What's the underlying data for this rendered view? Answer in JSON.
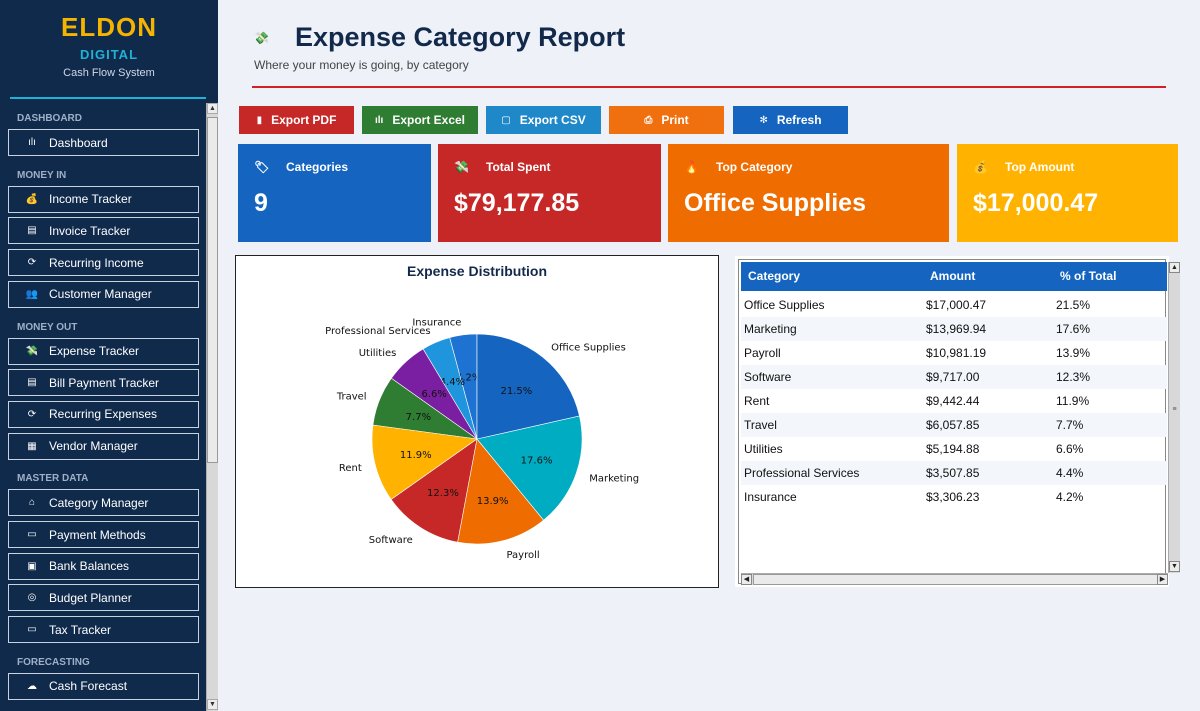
{
  "brand": {
    "name": "ELDON",
    "sub": "DIGITAL",
    "tagline": "Cash Flow System"
  },
  "sidebar": {
    "sections": [
      {
        "label": "DASHBOARD",
        "items": [
          {
            "icon": "bar-chart-icon",
            "glyph": "ılı",
            "label": "Dashboard"
          }
        ]
      },
      {
        "label": "MONEY IN",
        "items": [
          {
            "icon": "money-bag-icon",
            "glyph": "💰",
            "label": "Income Tracker"
          },
          {
            "icon": "invoice-icon",
            "glyph": "▤",
            "label": "Invoice Tracker"
          },
          {
            "icon": "recurring-icon",
            "glyph": "⟳",
            "label": "Recurring Income"
          },
          {
            "icon": "customers-icon",
            "glyph": "👥",
            "label": "Customer Manager"
          }
        ]
      },
      {
        "label": "MONEY OUT",
        "items": [
          {
            "icon": "money-wings-icon",
            "glyph": "💸",
            "label": "Expense Tracker"
          },
          {
            "icon": "bill-icon",
            "glyph": "▤",
            "label": "Bill Payment Tracker"
          },
          {
            "icon": "recurring-icon",
            "glyph": "⟳",
            "label": "Recurring Expenses"
          },
          {
            "icon": "vendor-icon",
            "glyph": "▦",
            "label": "Vendor Manager"
          }
        ]
      },
      {
        "label": "MASTER DATA",
        "items": [
          {
            "icon": "tag-icon",
            "glyph": "⌂",
            "label": "Category Manager"
          },
          {
            "icon": "credit-card-icon",
            "glyph": "▭",
            "label": "Payment Methods"
          },
          {
            "icon": "bank-icon",
            "glyph": "▣",
            "label": "Bank Balances"
          },
          {
            "icon": "target-icon",
            "glyph": "◎",
            "label": "Budget Planner"
          },
          {
            "icon": "tax-icon",
            "glyph": "▭",
            "label": "Tax Tracker"
          }
        ]
      },
      {
        "label": "FORECASTING",
        "items": [
          {
            "icon": "forecast-icon",
            "glyph": "☁",
            "label": "Cash Forecast"
          }
        ]
      }
    ]
  },
  "header": {
    "icon": "money-wings-icon",
    "glyph": "💸",
    "title": "Expense Category Report",
    "subtitle": "Where your money is going, by category"
  },
  "toolbar": [
    {
      "name": "export-pdf-button",
      "icon": "pdf-icon",
      "glyph": "▮",
      "label": "Export PDF",
      "color": "#c62828"
    },
    {
      "name": "export-excel-button",
      "icon": "excel-icon",
      "glyph": "ılı",
      "label": "Export Excel",
      "color": "#2e7d32"
    },
    {
      "name": "export-csv-button",
      "icon": "clipboard-icon",
      "glyph": "▢",
      "label": "Export CSV",
      "color": "#1e88c8"
    },
    {
      "name": "print-button",
      "icon": "printer-icon",
      "glyph": "⎙",
      "label": "Print",
      "color": "#f07010"
    },
    {
      "name": "refresh-button",
      "icon": "refresh-icon",
      "glyph": "✻",
      "label": "Refresh",
      "color": "#1565c0"
    }
  ],
  "kpis": [
    {
      "name": "categories-card",
      "icon": "tag-icon",
      "glyph": "🏷",
      "label": "Categories",
      "value": "9",
      "color": "#1565c0"
    },
    {
      "name": "total-spent-card",
      "icon": "money-wings-icon",
      "glyph": "💸",
      "label": "Total Spent",
      "value": "$79,177.85",
      "color": "#c62828"
    },
    {
      "name": "top-category-card",
      "icon": "fire-icon",
      "glyph": "🔥",
      "label": "Top Category",
      "value": "Office Supplies",
      "color": "#ef6c00"
    },
    {
      "name": "top-amount-card",
      "icon": "money-bag-icon",
      "glyph": "💰",
      "label": "Top Amount",
      "value": "$17,000.47",
      "color": "#ffb300"
    }
  ],
  "chart_data": {
    "type": "pie",
    "title": "Expense Distribution",
    "categories": [
      "Insurance",
      "Professional Services",
      "Utilities",
      "Travel",
      "Rent",
      "Software",
      "Payroll",
      "Marketing",
      "Office Supplies"
    ],
    "values": [
      4.2,
      4.4,
      6.6,
      7.7,
      11.9,
      12.3,
      13.9,
      17.6,
      21.5
    ],
    "labels": [
      "4.2%",
      "4.4%",
      "6.6%",
      "7.7%",
      "11.9%",
      "12.3%",
      "13.9%",
      "17.6%",
      "21.5%"
    ],
    "colors": [
      "#1e73d2",
      "#1e95dc",
      "#7b1fa2",
      "#2e7d32",
      "#ffb300",
      "#c62828",
      "#ef6c00",
      "#00acc1",
      "#1565c0"
    ]
  },
  "table": {
    "headers": [
      "Category",
      "Amount",
      "% of Total"
    ],
    "rows": [
      [
        "Office Supplies",
        "$17,000.47",
        "21.5%"
      ],
      [
        "Marketing",
        "$13,969.94",
        "17.6%"
      ],
      [
        "Payroll",
        "$10,981.19",
        "13.9%"
      ],
      [
        "Software",
        "$9,717.00",
        "12.3%"
      ],
      [
        "Rent",
        "$9,442.44",
        "11.9%"
      ],
      [
        "Travel",
        "$6,057.85",
        "7.7%"
      ],
      [
        "Utilities",
        "$5,194.88",
        "6.6%"
      ],
      [
        "Professional Services",
        "$3,507.85",
        "4.4%"
      ],
      [
        "Insurance",
        "$3,306.23",
        "4.2%"
      ]
    ]
  }
}
